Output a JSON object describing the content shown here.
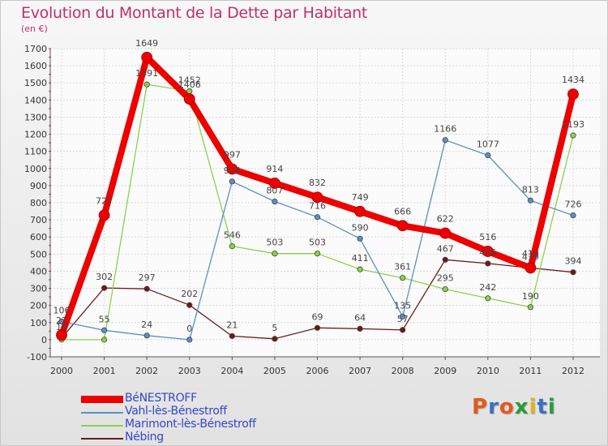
{
  "header": {
    "title": "Evolution du Montant de la Dette par Habitant",
    "unit": "(en €)"
  },
  "brand": {
    "text": "Proxiti",
    "colors": [
      "#e25a1e",
      "#3a6fc4",
      "#e25a1e",
      "#2a9a3a",
      "#e2b21e",
      "#3a6fc4",
      "#2a9a3a"
    ]
  },
  "chart_data": {
    "type": "line",
    "title": "Evolution du Montant de la Dette par Habitant",
    "ylabel": "(en €)",
    "xlabel": "",
    "x": [
      "2000",
      "2001",
      "2002",
      "2003",
      "2004",
      "2005",
      "2006",
      "2007",
      "2008",
      "2009",
      "2010",
      "2011",
      "2012"
    ],
    "ylim": [
      -100,
      1700
    ],
    "yticks": [
      -100,
      0,
      100,
      200,
      300,
      400,
      500,
      600,
      700,
      800,
      900,
      1000,
      1100,
      1200,
      1300,
      1400,
      1500,
      1600,
      1700
    ],
    "grid": true,
    "legend_position": "bottom-left",
    "series": [
      {
        "name": "BéNESTROFF",
        "color": "#ee0000",
        "values": [
          27,
          727,
          1649,
          1406,
          997,
          914,
          832,
          749,
          666,
          622,
          516,
          419,
          1434
        ],
        "labels": [
          "27",
          "727",
          "1649",
          "1406",
          "997",
          "914",
          "832",
          "749",
          "666",
          "622",
          "516",
          "419",
          "1434"
        ]
      },
      {
        "name": "Vahl-lès-Bénestroff",
        "color": "#5b8fc8",
        "values": [
          106,
          55,
          24,
          0,
          924,
          807,
          716,
          590,
          135,
          1166,
          1077,
          813,
          726
        ],
        "labels": [
          "106",
          "55",
          "24",
          "0",
          "924",
          "807",
          "716",
          "590",
          "135",
          "1166",
          "1077",
          "813",
          "726"
        ]
      },
      {
        "name": "Marimont-lès-Bénestroff",
        "color": "#8ed14a",
        "values": [
          0,
          0,
          1491,
          1452,
          546,
          503,
          503,
          411,
          361,
          295,
          242,
          190,
          1193
        ],
        "labels": [
          "",
          "",
          "1491",
          "1452",
          "546",
          "503",
          "503",
          "411",
          "361",
          "295",
          "242",
          "190",
          "1193"
        ]
      },
      {
        "name": "Nébing",
        "color": "#6b1a1a",
        "values": [
          10,
          302,
          297,
          202,
          21,
          5,
          69,
          64,
          57,
          467,
          445,
          419,
          394
        ],
        "labels": [
          "10",
          "302",
          "297",
          "202",
          "21",
          "5",
          "69",
          "64",
          "57",
          "467",
          "445",
          "419",
          "394"
        ]
      }
    ]
  }
}
